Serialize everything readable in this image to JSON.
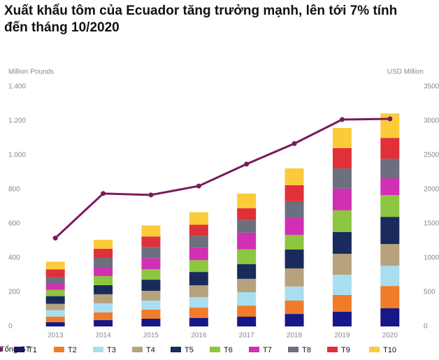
{
  "chart_data": {
    "type": "bar",
    "stacked": true,
    "title": "Xuất khẩu tôm của Ecuador tăng trưởng mạnh, lên tới 7% tính đến tháng 10/2020",
    "y_label": "Million Pounds",
    "y2_label": "USD Million",
    "categories": [
      "2013",
      "2014",
      "2015",
      "2016",
      "2017",
      "2018",
      "2019",
      "2020"
    ],
    "ylim": [
      0,
      1400
    ],
    "yticks": [
      0,
      200,
      400,
      600,
      800,
      {
        "value": 1000,
        "label": "1.000"
      },
      {
        "value": 1200,
        "label": "1.200"
      },
      {
        "value": 1400,
        "label": "1.400"
      }
    ],
    "y2lim": [
      0,
      3500
    ],
    "y2ticks": [
      0,
      500,
      1000,
      1500,
      2000,
      2500,
      3000,
      3500
    ],
    "grid": false,
    "series": [
      {
        "name": "T1",
        "color": "#17178a",
        "values": [
          25,
          37,
          45,
          49,
          57,
          73,
          86,
          106
        ]
      },
      {
        "name": "T2",
        "color": "#f07b2b",
        "values": [
          33,
          45,
          53,
          61,
          65,
          78,
          98,
          130
        ]
      },
      {
        "name": "T3",
        "color": "#a9def0",
        "values": [
          37,
          53,
          53,
          61,
          78,
          82,
          118,
          118
        ]
      },
      {
        "name": "T4",
        "color": "#b6a27c",
        "values": [
          37,
          53,
          57,
          69,
          78,
          106,
          122,
          127
        ]
      },
      {
        "name": "T5",
        "color": "#1b2a5c",
        "values": [
          45,
          53,
          65,
          78,
          86,
          110,
          127,
          159
        ]
      },
      {
        "name": "T6",
        "color": "#8dc63f",
        "values": [
          37,
          53,
          61,
          69,
          86,
          86,
          127,
          127
        ]
      },
      {
        "name": "T7",
        "color": "#d12fb4",
        "values": [
          37,
          53,
          65,
          73,
          98,
          98,
          127,
          98
        ]
      },
      {
        "name": "T8",
        "color": "#6b6f7e",
        "values": [
          37,
          53,
          65,
          69,
          73,
          98,
          118,
          114
        ]
      },
      {
        "name": "T9",
        "color": "#e0303a",
        "values": [
          45,
          53,
          61,
          65,
          69,
          94,
          118,
          122
        ]
      },
      {
        "name": "T10",
        "color": "#fbcb3a",
        "values": [
          45,
          53,
          65,
          73,
          86,
          98,
          118,
          143
        ]
      },
      {
        "name": "Tổng GT",
        "color": "#7a1a5e",
        "type": "line",
        "axis": "y2",
        "values": [
          1290,
          1940,
          1920,
          2050,
          2370,
          2670,
          3020,
          3030
        ]
      }
    ]
  }
}
